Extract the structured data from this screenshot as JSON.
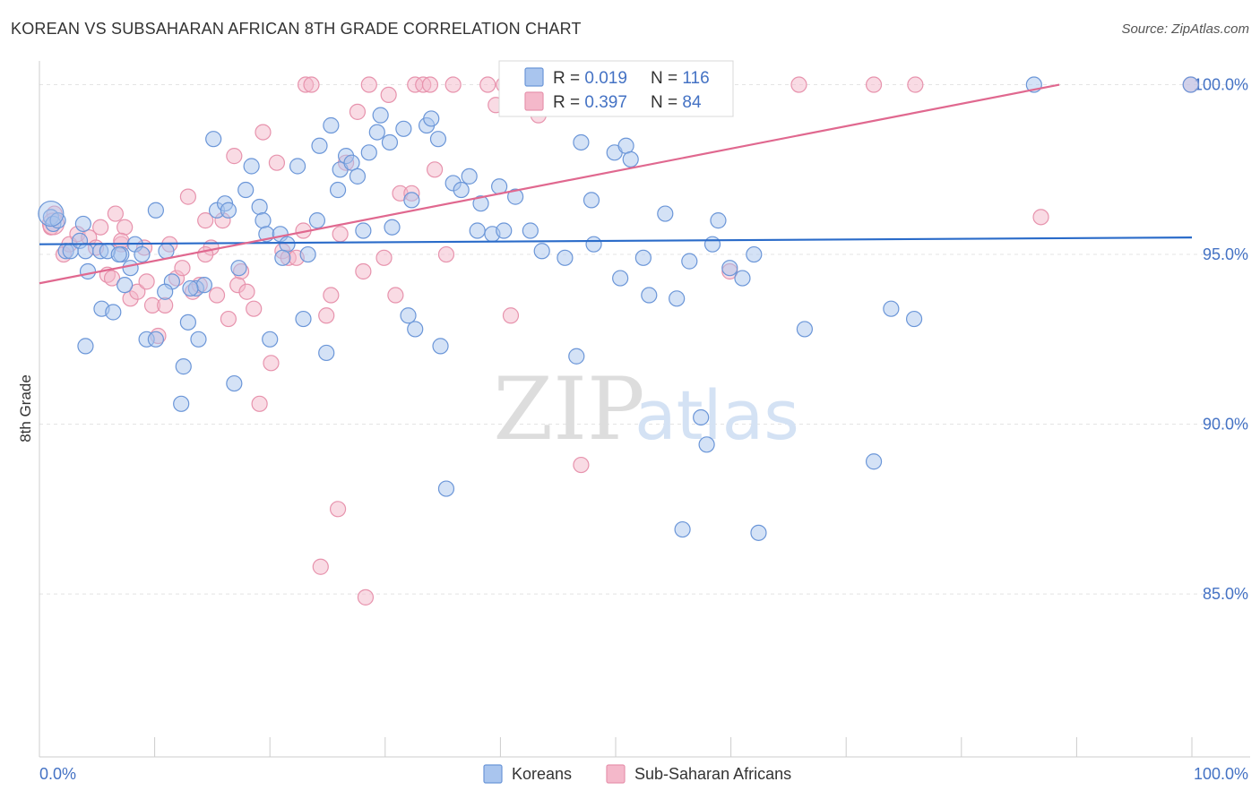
{
  "header": {
    "title": "KOREAN VS SUBSAHARAN AFRICAN 8TH GRADE CORRELATION CHART",
    "source": "Source: ZipAtlas.com"
  },
  "watermark": {
    "zip": "ZIP",
    "atlas": "atlas"
  },
  "colors": {
    "koreans_fill": "#a9c5ee",
    "koreans_stroke": "#6b96d8",
    "koreans_line": "#2a6bc9",
    "africans_fill": "#f4b8ca",
    "africans_stroke": "#e793ad",
    "africans_line": "#e0688f",
    "tick_label": "#4472c4",
    "grid": "#e4e4e4"
  },
  "stats_legend": {
    "rows": [
      {
        "r_label": "R = ",
        "r_value": "0.019",
        "n_label": "N = ",
        "n_value": "116"
      },
      {
        "r_label": "R = ",
        "r_value": "0.397",
        "n_label": "N = ",
        "n_value": "84"
      }
    ]
  },
  "chart_data": {
    "type": "scatter",
    "title": "KOREAN VS SUBSAHARAN AFRICAN 8TH GRADE CORRELATION CHART",
    "xlabel": "",
    "ylabel": "8th Grade",
    "xlim": [
      0,
      100
    ],
    "ylim": [
      80.2,
      100.7
    ],
    "x_tick_labels": [
      "0.0%",
      "100.0%"
    ],
    "y_ticks": [
      85,
      90,
      95,
      100
    ],
    "y_tick_labels": [
      "85.0%",
      "90.0%",
      "95.0%",
      "100.0%"
    ],
    "grid": true,
    "legend_position": "bottom",
    "series": [
      {
        "name": "Koreans",
        "trendline": [
          [
            0,
            95.3
          ],
          [
            100,
            95.5
          ]
        ],
        "points": [
          [
            1,
            96.1
          ],
          [
            1.2,
            95.9
          ],
          [
            1.6,
            96.0
          ],
          [
            2.3,
            95.1
          ],
          [
            2.7,
            95.1
          ],
          [
            3.5,
            95.4
          ],
          [
            4.0,
            95.1
          ],
          [
            4.2,
            94.5
          ],
          [
            5.3,
            95.1
          ],
          [
            5.4,
            93.4
          ],
          [
            6.4,
            93.3
          ],
          [
            4.0,
            92.3
          ],
          [
            7.1,
            95.0
          ],
          [
            7.4,
            94.1
          ],
          [
            7.9,
            94.6
          ],
          [
            8.3,
            95.3
          ],
          [
            8.9,
            95.0
          ],
          [
            9.3,
            92.5
          ],
          [
            10.1,
            92.5
          ],
          [
            10.1,
            96.3
          ],
          [
            11.0,
            95.1
          ],
          [
            11.5,
            94.2
          ],
          [
            12.3,
            90.6
          ],
          [
            12.5,
            91.7
          ],
          [
            12.9,
            93.0
          ],
          [
            13.6,
            94.0
          ],
          [
            13.8,
            92.5
          ],
          [
            14.3,
            94.1
          ],
          [
            15.1,
            98.4
          ],
          [
            15.4,
            96.3
          ],
          [
            16.1,
            96.5
          ],
          [
            16.4,
            96.3
          ],
          [
            16.9,
            91.2
          ],
          [
            17.3,
            94.6
          ],
          [
            17.9,
            96.9
          ],
          [
            18.4,
            97.6
          ],
          [
            19.1,
            96.4
          ],
          [
            19.4,
            96.0
          ],
          [
            19.7,
            95.6
          ],
          [
            20.0,
            92.5
          ],
          [
            20.9,
            95.6
          ],
          [
            21.5,
            95.3
          ],
          [
            22.4,
            97.6
          ],
          [
            22.9,
            93.1
          ],
          [
            23.3,
            95.0
          ],
          [
            24.1,
            96.0
          ],
          [
            24.3,
            98.2
          ],
          [
            24.9,
            92.1
          ],
          [
            25.3,
            98.8
          ],
          [
            25.9,
            96.9
          ],
          [
            26.1,
            97.5
          ],
          [
            26.6,
            97.9
          ],
          [
            27.1,
            97.7
          ],
          [
            27.6,
            97.3
          ],
          [
            28.1,
            95.7
          ],
          [
            28.6,
            98.0
          ],
          [
            29.3,
            98.6
          ],
          [
            29.6,
            99.1
          ],
          [
            30.4,
            98.3
          ],
          [
            30.6,
            95.8
          ],
          [
            31.6,
            98.7
          ],
          [
            32.0,
            93.2
          ],
          [
            32.3,
            96.6
          ],
          [
            32.6,
            92.8
          ],
          [
            33.6,
            98.8
          ],
          [
            34.0,
            99.0
          ],
          [
            34.6,
            98.4
          ],
          [
            34.8,
            92.3
          ],
          [
            35.3,
            88.1
          ],
          [
            35.9,
            97.1
          ],
          [
            36.6,
            96.9
          ],
          [
            37.3,
            97.3
          ],
          [
            38.0,
            95.7
          ],
          [
            38.3,
            96.5
          ],
          [
            39.3,
            95.6
          ],
          [
            39.9,
            97.0
          ],
          [
            40.3,
            95.7
          ],
          [
            41.3,
            96.7
          ],
          [
            42.6,
            95.7
          ],
          [
            43.6,
            95.1
          ],
          [
            45.6,
            94.9
          ],
          [
            46.6,
            92.0
          ],
          [
            47.0,
            98.3
          ],
          [
            47.9,
            96.6
          ],
          [
            48.1,
            95.3
          ],
          [
            49.9,
            98.0
          ],
          [
            50.4,
            94.3
          ],
          [
            50.9,
            98.2
          ],
          [
            51.3,
            97.8
          ],
          [
            52.4,
            94.9
          ],
          [
            52.9,
            93.8
          ],
          [
            54.3,
            96.2
          ],
          [
            55.3,
            93.7
          ],
          [
            55.8,
            86.9
          ],
          [
            56.4,
            94.8
          ],
          [
            57.4,
            90.2
          ],
          [
            57.9,
            89.4
          ],
          [
            58.4,
            95.3
          ],
          [
            58.9,
            96.0
          ],
          [
            59.9,
            94.6
          ],
          [
            61.0,
            94.3
          ],
          [
            62.0,
            95.0
          ],
          [
            62.4,
            86.8
          ],
          [
            66.4,
            92.8
          ],
          [
            72.4,
            88.9
          ],
          [
            73.9,
            93.4
          ],
          [
            75.9,
            93.1
          ],
          [
            86.3,
            100.0
          ],
          [
            99.9,
            100.0
          ],
          [
            3.8,
            95.9
          ],
          [
            5.9,
            95.1
          ],
          [
            6.9,
            95.0
          ],
          [
            10.9,
            93.9
          ],
          [
            13.1,
            94.0
          ],
          [
            21.1,
            94.9
          ]
        ]
      },
      {
        "name": "Sub-Saharan Africans",
        "trendline": [
          [
            0,
            94.15
          ],
          [
            88.5,
            100.0
          ]
        ],
        "points": [
          [
            1.0,
            95.8
          ],
          [
            1.3,
            96.2
          ],
          [
            2.1,
            95.0
          ],
          [
            2.6,
            95.3
          ],
          [
            3.3,
            95.6
          ],
          [
            4.3,
            95.5
          ],
          [
            4.9,
            95.2
          ],
          [
            5.3,
            95.8
          ],
          [
            5.9,
            94.4
          ],
          [
            6.3,
            94.3
          ],
          [
            6.6,
            96.2
          ],
          [
            7.1,
            95.3
          ],
          [
            7.4,
            95.8
          ],
          [
            7.9,
            93.7
          ],
          [
            8.5,
            93.9
          ],
          [
            9.1,
            95.2
          ],
          [
            9.3,
            94.2
          ],
          [
            9.8,
            93.5
          ],
          [
            10.3,
            92.6
          ],
          [
            10.9,
            93.5
          ],
          [
            11.3,
            95.3
          ],
          [
            11.9,
            94.3
          ],
          [
            12.4,
            94.6
          ],
          [
            12.9,
            96.7
          ],
          [
            13.3,
            93.9
          ],
          [
            13.9,
            94.1
          ],
          [
            14.4,
            96.0
          ],
          [
            14.9,
            95.2
          ],
          [
            15.4,
            93.8
          ],
          [
            15.9,
            96.0
          ],
          [
            16.4,
            93.1
          ],
          [
            16.9,
            97.9
          ],
          [
            17.2,
            94.1
          ],
          [
            17.5,
            94.5
          ],
          [
            18.0,
            93.9
          ],
          [
            18.6,
            93.4
          ],
          [
            19.1,
            90.6
          ],
          [
            19.4,
            98.6
          ],
          [
            20.1,
            91.8
          ],
          [
            20.6,
            97.7
          ],
          [
            21.1,
            95.1
          ],
          [
            21.6,
            94.9
          ],
          [
            22.3,
            94.9
          ],
          [
            22.9,
            95.7
          ],
          [
            23.1,
            100.0
          ],
          [
            23.6,
            100.0
          ],
          [
            24.4,
            85.8
          ],
          [
            24.9,
            93.2
          ],
          [
            25.3,
            93.8
          ],
          [
            25.9,
            87.5
          ],
          [
            26.1,
            95.6
          ],
          [
            26.6,
            97.7
          ],
          [
            27.6,
            99.2
          ],
          [
            28.1,
            94.5
          ],
          [
            28.3,
            84.9
          ],
          [
            28.6,
            100.0
          ],
          [
            29.9,
            94.9
          ],
          [
            30.3,
            99.7
          ],
          [
            30.9,
            93.8
          ],
          [
            31.3,
            96.8
          ],
          [
            32.3,
            96.8
          ],
          [
            32.6,
            100.0
          ],
          [
            33.3,
            100.0
          ],
          [
            33.9,
            100.0
          ],
          [
            34.3,
            97.5
          ],
          [
            35.3,
            95.0
          ],
          [
            35.9,
            100.0
          ],
          [
            38.9,
            100.0
          ],
          [
            39.6,
            99.4
          ],
          [
            40.3,
            100.0
          ],
          [
            40.9,
            93.2
          ],
          [
            42.6,
            100.0
          ],
          [
            43.3,
            99.1
          ],
          [
            47.0,
            88.8
          ],
          [
            52.9,
            100.0
          ],
          [
            54.0,
            100.0
          ],
          [
            59.9,
            94.5
          ],
          [
            65.9,
            100.0
          ],
          [
            72.4,
            100.0
          ],
          [
            76.0,
            100.0
          ],
          [
            86.9,
            96.1
          ],
          [
            99.9,
            100.0
          ],
          [
            7.1,
            95.4
          ],
          [
            14.4,
            95.0
          ]
        ]
      }
    ]
  },
  "bottom_legend": {
    "items": [
      {
        "label": "Koreans"
      },
      {
        "label": "Sub-Saharan Africans"
      }
    ]
  }
}
